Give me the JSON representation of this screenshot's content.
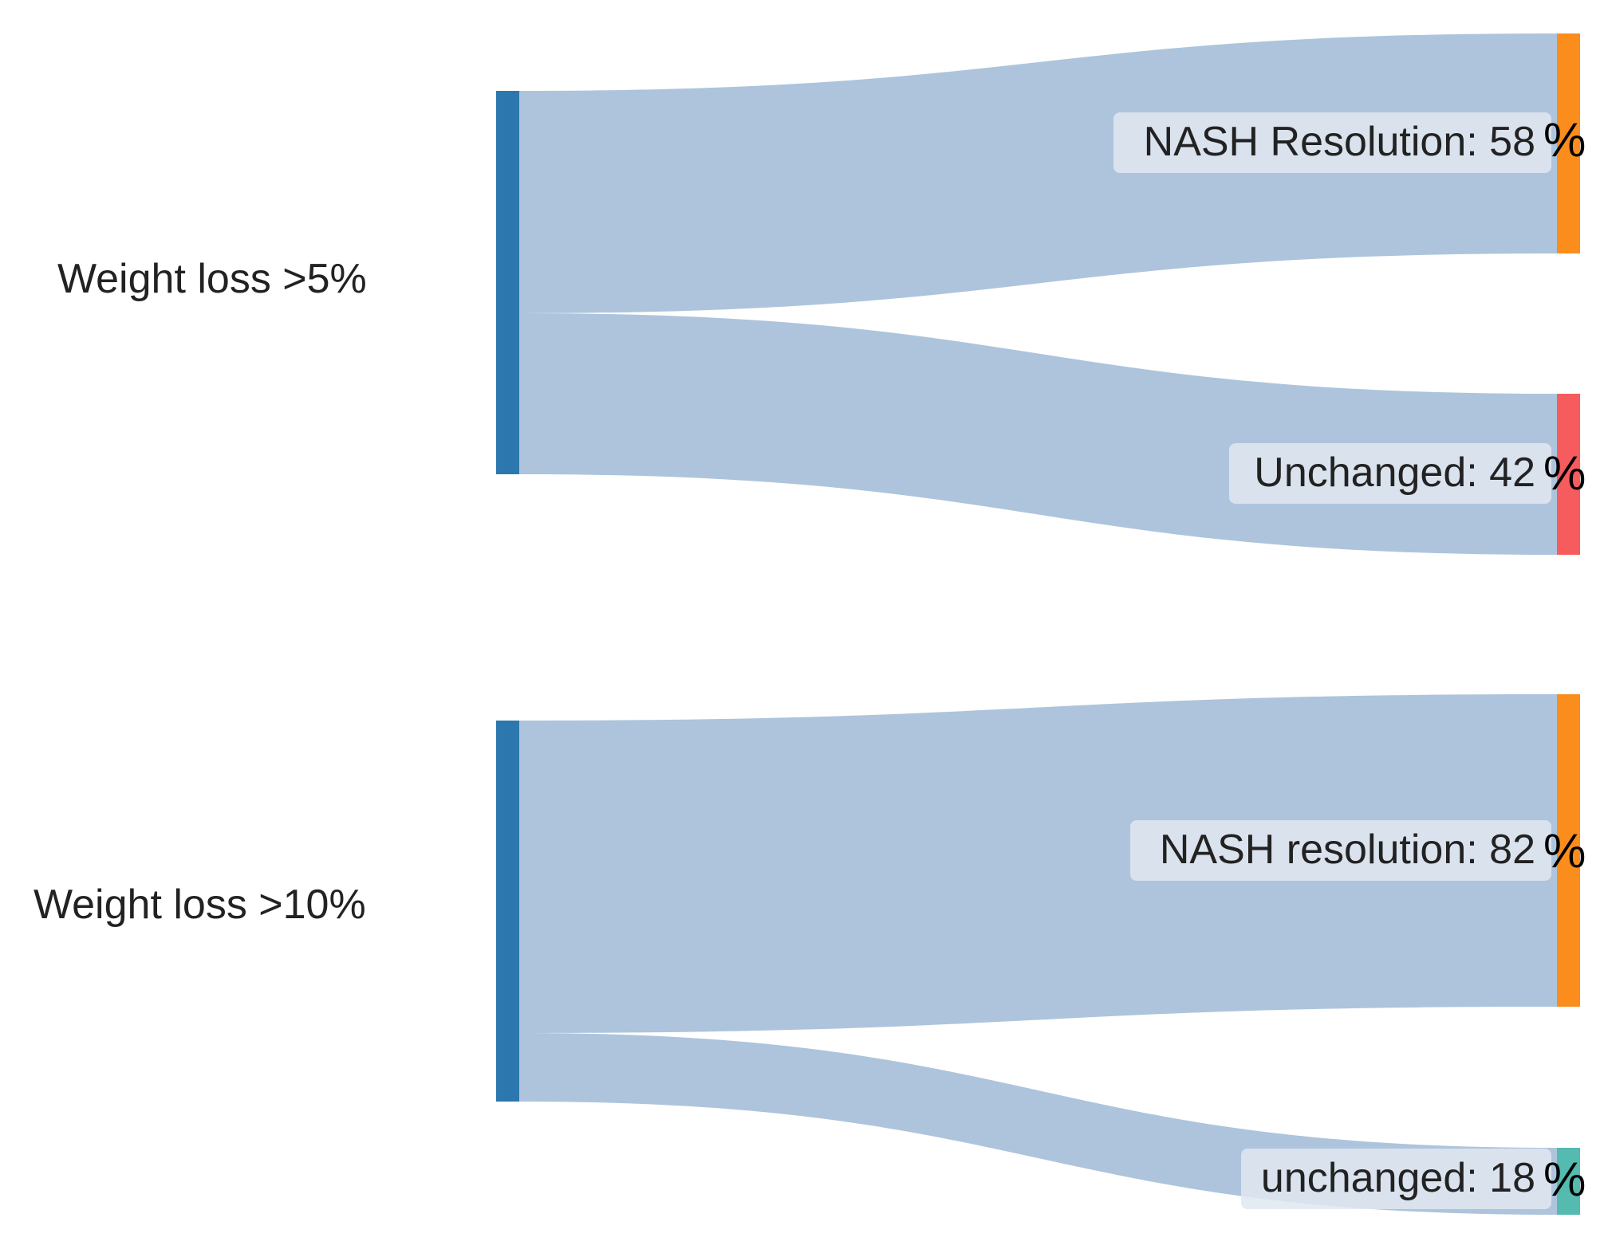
{
  "colors": {
    "link": "#adc4dc",
    "source_node": "#2c77ad",
    "resolution_node": "#fb8d1d",
    "unchanged_node_1": "#f65b5d",
    "unchanged_node_2": "#55bab0",
    "label_box": "#e0e8f0",
    "text": "#222222"
  },
  "diagrams": [
    {
      "source": {
        "label": "Weight loss >5%"
      },
      "targets": [
        {
          "label": "NASH Resolution: 58",
          "suffix": "%",
          "value": 58,
          "color_key": "resolution_node"
        },
        {
          "label": "Unchanged: 42",
          "suffix": "%",
          "value": 42,
          "color_key": "unchanged_node_1"
        }
      ]
    },
    {
      "source": {
        "label": "Weight loss >10%"
      },
      "targets": [
        {
          "label": "NASH resolution: 82",
          "suffix": "%",
          "value": 82,
          "color_key": "resolution_node"
        },
        {
          "label": "unchanged: 18",
          "suffix": "%",
          "value": 18,
          "color_key": "unchanged_node_2"
        }
      ]
    }
  ]
}
